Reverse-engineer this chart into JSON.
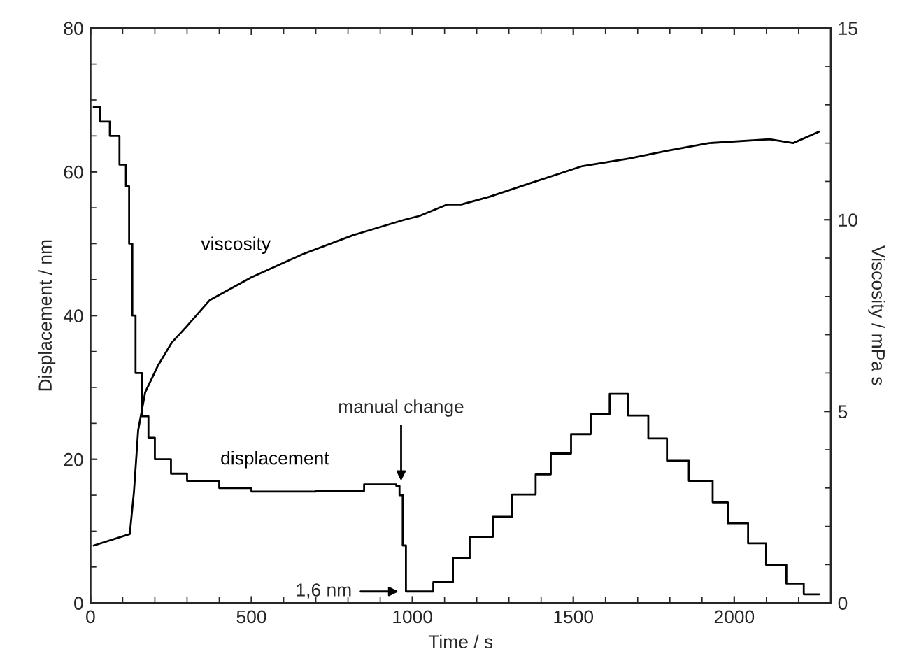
{
  "chart_data": {
    "type": "line",
    "xlabel": "Time / s",
    "ylabel": "Displacement / nm",
    "y2label": "Viscosity / mPa s",
    "xlim": [
      0,
      2300
    ],
    "xticks": [
      0,
      500,
      1000,
      1500,
      2000
    ],
    "ylim": [
      0,
      80
    ],
    "yticks": [
      0,
      20,
      40,
      60,
      80
    ],
    "y2lim": [
      0,
      15
    ],
    "y2ticks": [
      0,
      5,
      10,
      15
    ],
    "grid": false,
    "legend": false,
    "line_style": "solid",
    "marker": "none",
    "series": [
      {
        "name": "displacement",
        "type": "step",
        "color": "#000000",
        "x": [
          10,
          30,
          60,
          90,
          110,
          120,
          130,
          140,
          160,
          180,
          200,
          250,
          300,
          400,
          500,
          700,
          850,
          950,
          960,
          970,
          980,
          1065,
          1126,
          1178,
          1250,
          1310,
          1383,
          1430,
          1493,
          1554,
          1613,
          1670,
          1733,
          1791,
          1859,
          1933,
          1980,
          2043,
          2099,
          2162,
          2216,
          2264
        ],
        "values": [
          69,
          67,
          65,
          61,
          58,
          50,
          40,
          32,
          26,
          23,
          20,
          18,
          17,
          16,
          15.5,
          15.6,
          16.5,
          16.3,
          15,
          8,
          1.6,
          2.9,
          6.2,
          9.2,
          12.0,
          15.1,
          17.9,
          20.8,
          23.5,
          26.3,
          29.1,
          26.1,
          22.9,
          19.8,
          17.0,
          14.0,
          11.1,
          8.3,
          5.3,
          2.7,
          1.2,
          1.2
        ]
      },
      {
        "name": "viscosity",
        "axis": "y2",
        "color": "#000000",
        "x": [
          10,
          122,
          135,
          148,
          170,
          210,
          253,
          297,
          370,
          500,
          659,
          817,
          975,
          1022,
          1109,
          1152,
          1239,
          1383,
          1528,
          1674,
          1791,
          1922,
          2110,
          2183,
          2264
        ],
        "values": [
          1.5,
          1.8,
          2.9,
          4.5,
          5.5,
          6.2,
          6.8,
          7.2,
          7.9,
          8.5,
          9.1,
          9.6,
          10.0,
          10.1,
          10.4,
          10.4,
          10.6,
          11.0,
          11.4,
          11.6,
          11.8,
          12.0,
          12.1,
          12.0,
          12.3
        ]
      }
    ],
    "annotations": [
      {
        "text": "manual change",
        "x": 965,
        "y": 17
      },
      {
        "text": "1,6 nm",
        "x": 957,
        "y": 1.6
      }
    ]
  }
}
